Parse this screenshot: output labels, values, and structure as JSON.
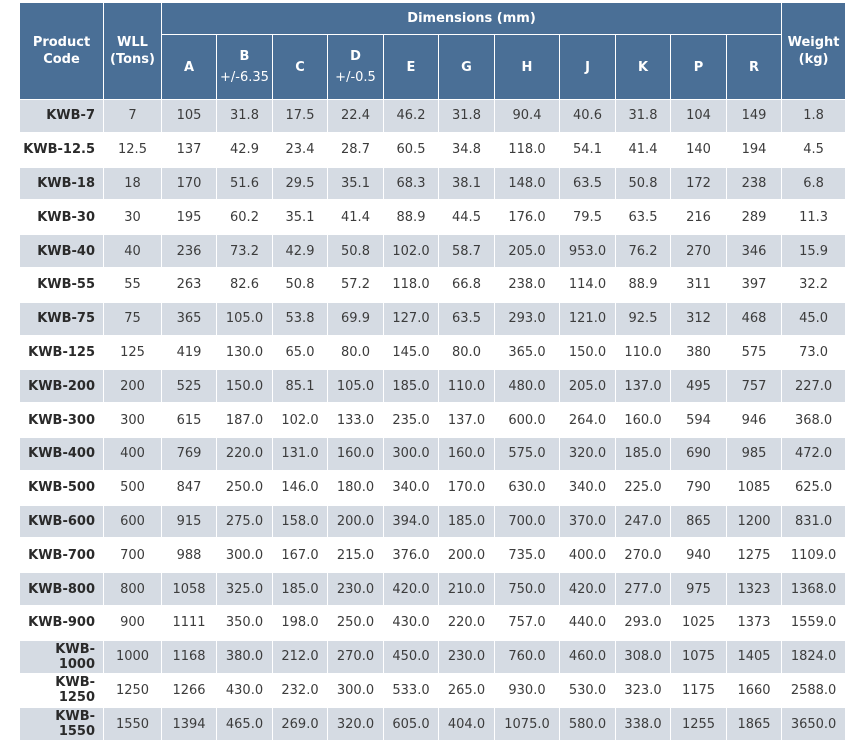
{
  "headers": {
    "product_code": "Product\nCode",
    "wll": "WLL\n(Tons)",
    "dimensions": "Dimensions (mm)",
    "weight": "Weight\n(kg)",
    "dim_columns": [
      {
        "label": "A",
        "tol": ""
      },
      {
        "label": "B",
        "tol": "+/-6.35"
      },
      {
        "label": "C",
        "tol": ""
      },
      {
        "label": "D",
        "tol": "+/-0.5"
      },
      {
        "label": "E",
        "tol": ""
      },
      {
        "label": "G",
        "tol": ""
      },
      {
        "label": "H",
        "tol": ""
      },
      {
        "label": "J",
        "tol": ""
      },
      {
        "label": "K",
        "tol": ""
      },
      {
        "label": "P",
        "tol": ""
      },
      {
        "label": "R",
        "tol": ""
      }
    ]
  },
  "rows": [
    [
      "KWB-7",
      "7",
      "105",
      "31.8",
      "17.5",
      "22.4",
      "46.2",
      "31.8",
      "90.4",
      "40.6",
      "31.8",
      "104",
      "149",
      "1.8"
    ],
    [
      "KWB-12.5",
      "12.5",
      "137",
      "42.9",
      "23.4",
      "28.7",
      "60.5",
      "34.8",
      "118.0",
      "54.1",
      "41.4",
      "140",
      "194",
      "4.5"
    ],
    [
      "KWB-18",
      "18",
      "170",
      "51.6",
      "29.5",
      "35.1",
      "68.3",
      "38.1",
      "148.0",
      "63.5",
      "50.8",
      "172",
      "238",
      "6.8"
    ],
    [
      "KWB-30",
      "30",
      "195",
      "60.2",
      "35.1",
      "41.4",
      "88.9",
      "44.5",
      "176.0",
      "79.5",
      "63.5",
      "216",
      "289",
      "11.3"
    ],
    [
      "KWB-40",
      "40",
      "236",
      "73.2",
      "42.9",
      "50.8",
      "102.0",
      "58.7",
      "205.0",
      "953.0",
      "76.2",
      "270",
      "346",
      "15.9"
    ],
    [
      "KWB-55",
      "55",
      "263",
      "82.6",
      "50.8",
      "57.2",
      "118.0",
      "66.8",
      "238.0",
      "114.0",
      "88.9",
      "311",
      "397",
      "32.2"
    ],
    [
      "KWB-75",
      "75",
      "365",
      "105.0",
      "53.8",
      "69.9",
      "127.0",
      "63.5",
      "293.0",
      "121.0",
      "92.5",
      "312",
      "468",
      "45.0"
    ],
    [
      "KWB-125",
      "125",
      "419",
      "130.0",
      "65.0",
      "80.0",
      "145.0",
      "80.0",
      "365.0",
      "150.0",
      "110.0",
      "380",
      "575",
      "73.0"
    ],
    [
      "KWB-200",
      "200",
      "525",
      "150.0",
      "85.1",
      "105.0",
      "185.0",
      "110.0",
      "480.0",
      "205.0",
      "137.0",
      "495",
      "757",
      "227.0"
    ],
    [
      "KWB-300",
      "300",
      "615",
      "187.0",
      "102.0",
      "133.0",
      "235.0",
      "137.0",
      "600.0",
      "264.0",
      "160.0",
      "594",
      "946",
      "368.0"
    ],
    [
      "KWB-400",
      "400",
      "769",
      "220.0",
      "131.0",
      "160.0",
      "300.0",
      "160.0",
      "575.0",
      "320.0",
      "185.0",
      "690",
      "985",
      "472.0"
    ],
    [
      "KWB-500",
      "500",
      "847",
      "250.0",
      "146.0",
      "180.0",
      "340.0",
      "170.0",
      "630.0",
      "340.0",
      "225.0",
      "790",
      "1085",
      "625.0"
    ],
    [
      "KWB-600",
      "600",
      "915",
      "275.0",
      "158.0",
      "200.0",
      "394.0",
      "185.0",
      "700.0",
      "370.0",
      "247.0",
      "865",
      "1200",
      "831.0"
    ],
    [
      "KWB-700",
      "700",
      "988",
      "300.0",
      "167.0",
      "215.0",
      "376.0",
      "200.0",
      "735.0",
      "400.0",
      "270.0",
      "940",
      "1275",
      "1109.0"
    ],
    [
      "KWB-800",
      "800",
      "1058",
      "325.0",
      "185.0",
      "230.0",
      "420.0",
      "210.0",
      "750.0",
      "420.0",
      "277.0",
      "975",
      "1323",
      "1368.0"
    ],
    [
      "KWB-900",
      "900",
      "1111",
      "350.0",
      "198.0",
      "250.0",
      "430.0",
      "220.0",
      "757.0",
      "440.0",
      "293.0",
      "1025",
      "1373",
      "1559.0"
    ],
    [
      "KWB-1000",
      "1000",
      "1168",
      "380.0",
      "212.0",
      "270.0",
      "450.0",
      "230.0",
      "760.0",
      "460.0",
      "308.0",
      "1075",
      "1405",
      "1824.0"
    ],
    [
      "KWB-1250",
      "1250",
      "1266",
      "430.0",
      "232.0",
      "300.0",
      "533.0",
      "265.0",
      "930.0",
      "530.0",
      "323.0",
      "1175",
      "1660",
      "2588.0"
    ],
    [
      "KWB-1550",
      "1550",
      "1394",
      "465.0",
      "269.0",
      "320.0",
      "605.0",
      "404.0",
      "1075.0",
      "580.0",
      "338.0",
      "1255",
      "1865",
      "3650.0"
    ]
  ],
  "colors": {
    "header_bg": "#4a6f96",
    "header_text": "#ffffff",
    "shaded_row": "#d5dbe3",
    "plain_row": "#ffffff"
  }
}
